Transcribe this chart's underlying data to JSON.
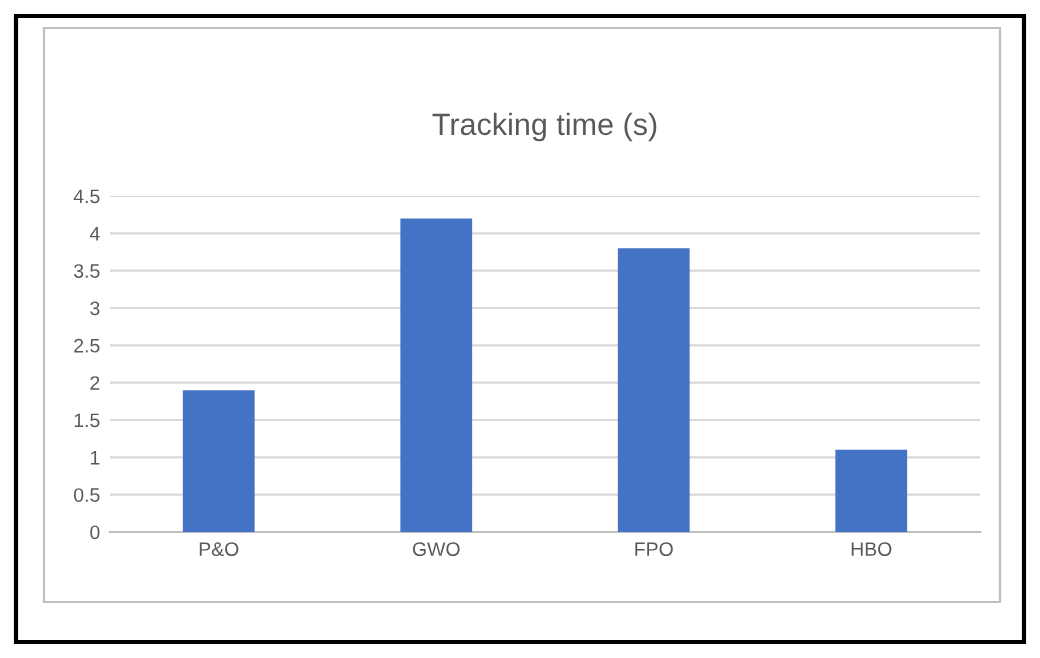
{
  "chart_data": {
    "type": "bar",
    "title": "Tracking time (s)",
    "categories": [
      "P&O",
      "GWO",
      "FPO",
      "HBO"
    ],
    "values": [
      1.9,
      4.2,
      3.8,
      1.1
    ],
    "color": "#4472c4",
    "ylim": [
      0,
      4.5
    ],
    "yticks": [
      0,
      0.5,
      1,
      1.5,
      2,
      2.5,
      3,
      3.5,
      4,
      4.5
    ],
    "grid": "y"
  }
}
